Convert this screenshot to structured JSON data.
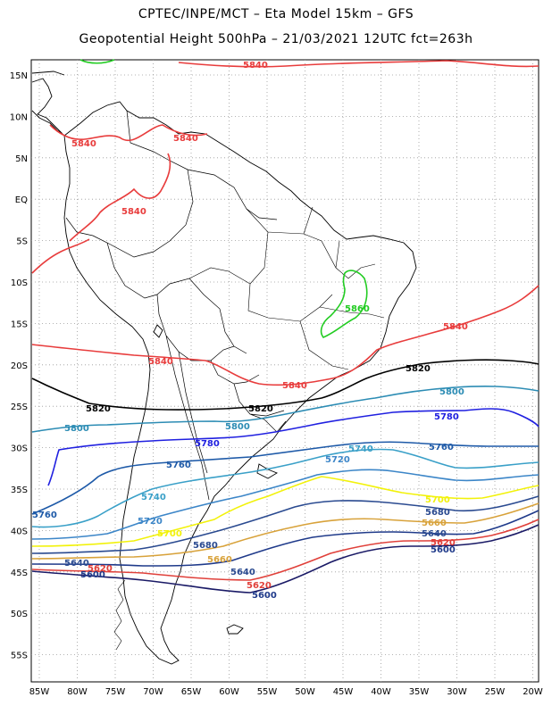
{
  "header": {
    "line1": "CPTEC/INPE/MCT –  Eta Model 15km – GFS",
    "line2": "Geopotential Height 500hPa – 21/03/2021 12UTC fct=263h"
  },
  "axes": {
    "lat_labels": [
      "15N",
      "10N",
      "5N",
      "EQ",
      "5S",
      "10S",
      "15S",
      "20S",
      "25S",
      "30S",
      "35S",
      "40S",
      "45S",
      "50S",
      "55S"
    ],
    "lon_labels": [
      "85W",
      "80W",
      "75W",
      "70W",
      "65W",
      "60W",
      "55W",
      "50W",
      "45W",
      "40W",
      "35W",
      "30W",
      "25W",
      "20W"
    ],
    "grid": true
  },
  "colors": {
    "c5580": "#1a1a66",
    "c5600": "#1f3a8a",
    "c5620": "#e0403a",
    "c5640": "#2a4a90",
    "c5660": "#d8a23a",
    "c5700": "#f2f20a",
    "c5720": "#3c86c8",
    "c5740": "#3aa0c8",
    "c5760": "#1e5aa8",
    "c5780": "#2020e0",
    "c5800": "#2c8cb4",
    "c5820": "#000000",
    "c5840": "#e83c3c",
    "c5860": "#22cc22",
    "land": "#000000"
  },
  "contour_labels": [
    {
      "text": "5840",
      "color": "c5840"
    },
    {
      "text": "5840",
      "color": "c5840"
    },
    {
      "text": "5840",
      "color": "c5840"
    },
    {
      "text": "5840",
      "color": "c5840"
    },
    {
      "text": "5840",
      "color": "c5840"
    },
    {
      "text": "5840",
      "color": "c5840"
    },
    {
      "text": "5840",
      "color": "c5840"
    },
    {
      "text": "5860",
      "color": "c5860"
    },
    {
      "text": "5820",
      "color": "c5820"
    },
    {
      "text": "5820",
      "color": "c5820"
    },
    {
      "text": "5820",
      "color": "c5820"
    },
    {
      "text": "5800",
      "color": "c5800"
    },
    {
      "text": "5800",
      "color": "c5800"
    },
    {
      "text": "5800",
      "color": "c5800"
    },
    {
      "text": "5780",
      "color": "c5780"
    },
    {
      "text": "5780",
      "color": "c5780"
    },
    {
      "text": "5760",
      "color": "c5760"
    },
    {
      "text": "5760",
      "color": "c5760"
    },
    {
      "text": "5760",
      "color": "c5760"
    },
    {
      "text": "5740",
      "color": "c5740"
    },
    {
      "text": "5740",
      "color": "c5740"
    },
    {
      "text": "5720",
      "color": "c5720"
    },
    {
      "text": "5720",
      "color": "c5720"
    },
    {
      "text": "5700",
      "color": "c5700"
    },
    {
      "text": "5700",
      "color": "c5700"
    },
    {
      "text": "5680",
      "color": "c5640"
    },
    {
      "text": "5680",
      "color": "c5640"
    },
    {
      "text": "5660",
      "color": "c5660"
    },
    {
      "text": "5660",
      "color": "c5660"
    },
    {
      "text": "5640",
      "color": "c5640"
    },
    {
      "text": "5640",
      "color": "c5640"
    },
    {
      "text": "5640",
      "color": "c5640"
    },
    {
      "text": "5620",
      "color": "c5620"
    },
    {
      "text": "5620",
      "color": "c5620"
    },
    {
      "text": "5620",
      "color": "c5620"
    },
    {
      "text": "5600",
      "color": "c5600"
    },
    {
      "text": "5600",
      "color": "c5600"
    },
    {
      "text": "5600",
      "color": "c5600"
    },
    {
      "text": "5580",
      "color": "c5580"
    }
  ]
}
